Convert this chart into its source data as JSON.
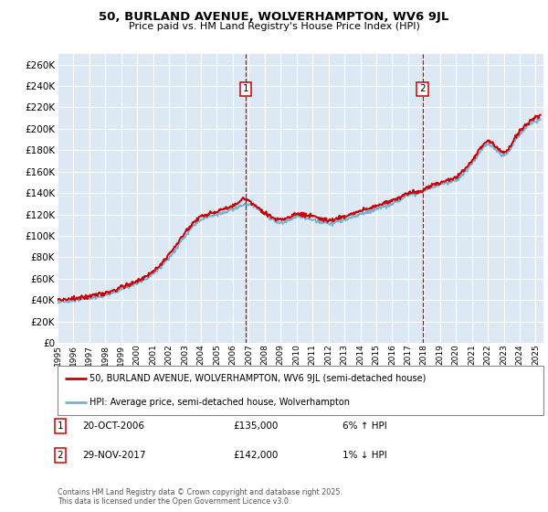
{
  "title": "50, BURLAND AVENUE, WOLVERHAMPTON, WV6 9JL",
  "subtitle": "Price paid vs. HM Land Registry's House Price Index (HPI)",
  "legend_label_red": "50, BURLAND AVENUE, WOLVERHAMPTON, WV6 9JL (semi-detached house)",
  "legend_label_blue": "HPI: Average price, semi-detached house, Wolverhampton",
  "footnote": "Contains HM Land Registry data © Crown copyright and database right 2025.\nThis data is licensed under the Open Government Licence v3.0.",
  "sale1_label": "1",
  "sale1_date": "20-OCT-2006",
  "sale1_price": "£135,000",
  "sale1_hpi": "6% ↑ HPI",
  "sale2_label": "2",
  "sale2_date": "29-NOV-2017",
  "sale2_price": "£142,000",
  "sale2_hpi": "1% ↓ HPI",
  "xmin": 1995.0,
  "xmax": 2025.5,
  "ymin": 0,
  "ymax": 270000,
  "yticks": [
    0,
    20000,
    40000,
    60000,
    80000,
    100000,
    120000,
    140000,
    160000,
    180000,
    200000,
    220000,
    240000,
    260000
  ],
  "background_color": "#dce9f5",
  "grid_color": "#ffffff",
  "red_color": "#cc0000",
  "blue_color": "#7aafd4",
  "sale1_x": 2006.8,
  "sale2_x": 2017.9,
  "hpi_x": [
    1995,
    1996,
    1997,
    1998,
    1999,
    2000,
    2001,
    2002,
    2003,
    2004,
    2005,
    2006,
    2007,
    2008,
    2009,
    2010,
    2011,
    2012,
    2013,
    2014,
    2015,
    2016,
    2017,
    2018,
    2019,
    2020,
    2021,
    2022,
    2023,
    2024,
    2025.3
  ],
  "hpi_y": [
    38000,
    40000,
    42000,
    45000,
    50000,
    56000,
    65000,
    80000,
    100000,
    115000,
    120000,
    125000,
    130000,
    120000,
    112000,
    118000,
    115000,
    112000,
    115000,
    120000,
    125000,
    130000,
    138000,
    142000,
    148000,
    152000,
    168000,
    185000,
    175000,
    195000,
    210000
  ],
  "prop_x": [
    1995,
    1996,
    1997,
    1998,
    1999,
    2000,
    2001,
    2002,
    2003,
    2004,
    2005,
    2006,
    2006.8,
    2007,
    2008,
    2009,
    2010,
    2011,
    2012,
    2013,
    2014,
    2015,
    2016,
    2017,
    2017.9,
    2018,
    2019,
    2020,
    2021,
    2022,
    2023,
    2024,
    2025.3
  ],
  "prop_y": [
    40000,
    42000,
    44000,
    47000,
    52000,
    58000,
    67000,
    83000,
    103000,
    118000,
    123000,
    128000,
    135000,
    133000,
    122000,
    115000,
    120000,
    118000,
    115000,
    118000,
    123000,
    128000,
    133000,
    140000,
    142000,
    144000,
    150000,
    155000,
    170000,
    188000,
    178000,
    198000,
    213000
  ],
  "noise_seed_hpi": 10,
  "noise_seed_prop": 20,
  "noise_std": 900
}
